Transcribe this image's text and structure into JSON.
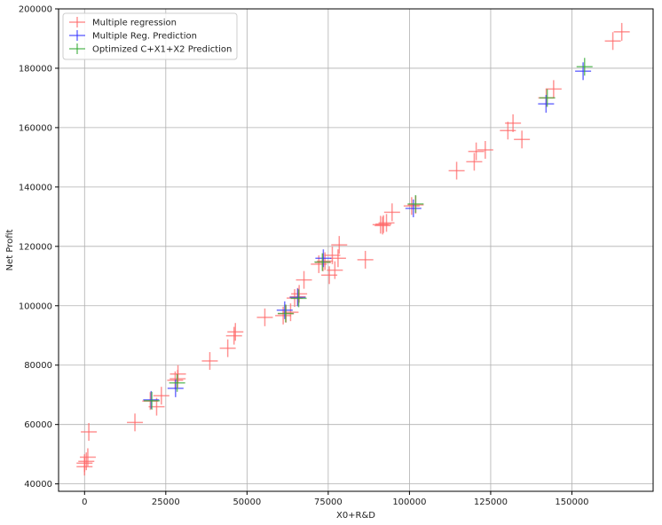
{
  "chart_data": {
    "type": "scatter",
    "xlabel": "X0+R&D",
    "ylabel": "Net Profit",
    "xlim": [
      -8000,
      175000
    ],
    "ylim": [
      37500,
      200000
    ],
    "xticks": [
      0,
      25000,
      50000,
      75000,
      100000,
      125000,
      150000
    ],
    "yticks": [
      40000,
      60000,
      80000,
      100000,
      120000,
      140000,
      160000,
      180000,
      200000
    ],
    "grid": true,
    "legend_position": "top-left",
    "marker": "plus",
    "series": [
      {
        "name": "Multiple regression",
        "color": "#ff6666",
        "points": [
          [
            165349,
            192262
          ],
          [
            162598,
            189156
          ],
          [
            144372,
            173000
          ],
          [
            142107,
            170000
          ],
          [
            134615,
            156000
          ],
          [
            131877,
            161500
          ],
          [
            130298,
            159000
          ],
          [
            123335,
            152500
          ],
          [
            120543,
            152000
          ],
          [
            119943,
            148500
          ],
          [
            114524,
            145500
          ],
          [
            101913,
            134000
          ],
          [
            100672,
            133600
          ],
          [
            94657,
            131500
          ],
          [
            92932,
            127900
          ],
          [
            91994,
            127500
          ],
          [
            91749,
            127000
          ],
          [
            91099,
            127300
          ],
          [
            86420,
            115500
          ],
          [
            78389,
            120500
          ],
          [
            78014,
            116000
          ],
          [
            77045,
            112000
          ],
          [
            76254,
            117000
          ],
          [
            75328,
            110300
          ],
          [
            73995,
            115000
          ],
          [
            73395,
            114600
          ],
          [
            72108,
            114000
          ],
          [
            67533,
            108700
          ],
          [
            66052,
            104000
          ],
          [
            65605,
            103000
          ],
          [
            64665,
            102600
          ],
          [
            63408,
            97800
          ],
          [
            61994,
            97300
          ],
          [
            61136,
            96700
          ],
          [
            55493,
            96100
          ],
          [
            46426,
            91200
          ],
          [
            46014,
            89900
          ],
          [
            44070,
            85700
          ],
          [
            38558,
            81400
          ],
          [
            28754,
            77000
          ],
          [
            28664,
            75400
          ],
          [
            27892,
            74900
          ],
          [
            23641,
            69700
          ],
          [
            22178,
            66000
          ],
          [
            20230,
            67900
          ],
          [
            15505,
            60700
          ],
          [
            1315,
            57500
          ],
          [
            1000,
            49000
          ],
          [
            542,
            47600
          ],
          [
            0,
            47000
          ],
          [
            0,
            45800
          ]
        ]
      },
      {
        "name": "Multiple Reg. Prediction",
        "color": "#3333ff",
        "points": [
          [
            153450,
            179000
          ],
          [
            142050,
            168000
          ],
          [
            101200,
            132800
          ],
          [
            73500,
            116000
          ],
          [
            65600,
            102800
          ],
          [
            61600,
            98500
          ],
          [
            28000,
            72200
          ],
          [
            20500,
            68300
          ]
        ]
      },
      {
        "name": "Optimized C+X1+X2 Prediction",
        "color": "#33aa33",
        "points": [
          [
            153900,
            180500
          ],
          [
            142400,
            170000
          ],
          [
            101900,
            134300
          ],
          [
            73200,
            114700
          ],
          [
            65900,
            102500
          ],
          [
            61900,
            97400
          ],
          [
            28500,
            74000
          ],
          [
            20700,
            68000
          ]
        ]
      }
    ]
  }
}
